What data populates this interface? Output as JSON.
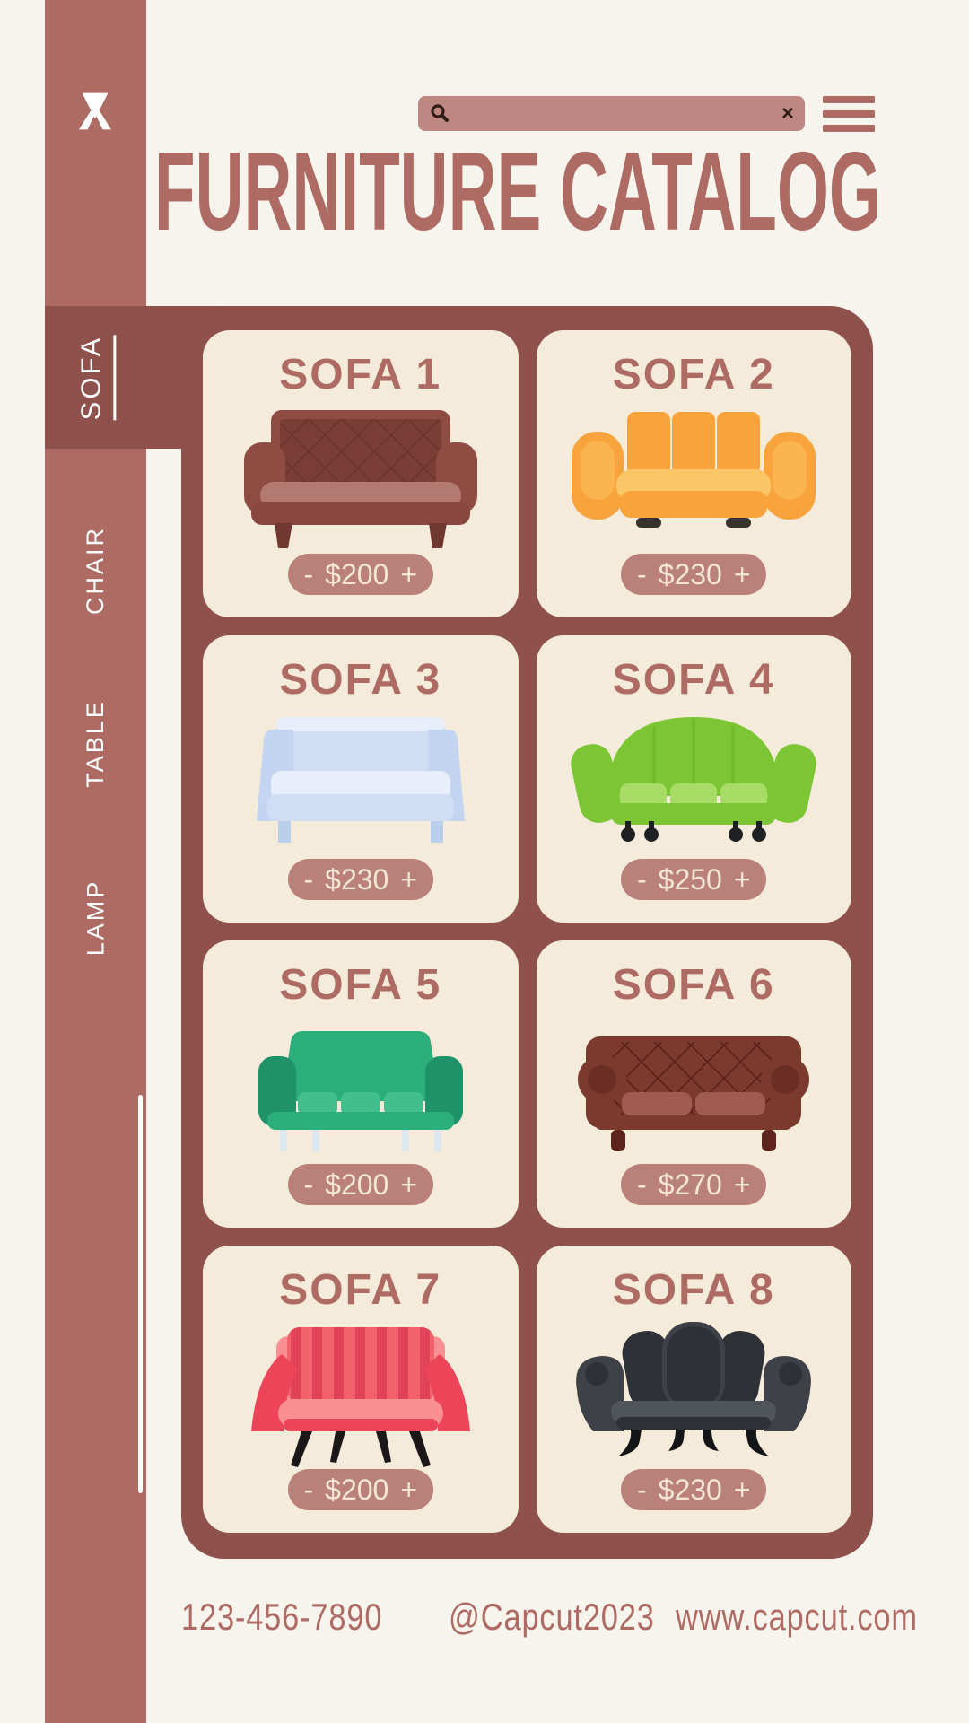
{
  "app": {
    "title": "FURNITURE CATALOG"
  },
  "theme": {
    "bg": "#F7F4EE",
    "card": "#F5EBDA",
    "mauve": "#AE6B64",
    "maroon": "#8F514B",
    "pill": "#B9817A",
    "search": "#BE8781",
    "textcream": "#F3E6D5",
    "dark": "#301D18"
  },
  "sidebar": {
    "logo": "capcut-logo",
    "items": [
      {
        "label": "SOFA",
        "active": true
      },
      {
        "label": "CHAIR",
        "active": false
      },
      {
        "label": "TABLE",
        "active": false
      },
      {
        "label": "LAMP",
        "active": false
      }
    ]
  },
  "search": {
    "value": "",
    "clear_glyph": "×"
  },
  "stepper": {
    "minus": "-",
    "plus": "+"
  },
  "products": [
    {
      "name": "SOFA 1",
      "price": "$200",
      "style": "chesterfield",
      "colors": {
        "main": "#8F4C43",
        "dark": "#7A3E36",
        "line": "#69332B",
        "light": "#B37A71",
        "base": "#8A4740",
        "leg": "#703830"
      }
    },
    {
      "name": "SOFA 2",
      "price": "$230",
      "style": "modern",
      "colors": {
        "main": "#F9A33C",
        "light": "#FBC766",
        "dark": "#EE8D2B",
        "leg": "#37332C"
      }
    },
    {
      "name": "SOFA 3",
      "price": "$230",
      "style": "boxy",
      "colors": {
        "main": "#C3D5F0",
        "mid": "#CFDEF5",
        "light": "#E8EFFA",
        "leg": "#BACFEC"
      }
    },
    {
      "name": "SOFA 4",
      "price": "$250",
      "style": "dome",
      "colors": {
        "main": "#7CC636",
        "light": "#A9DC66",
        "dark": "#63AE25",
        "leg": "#1F2022"
      }
    },
    {
      "name": "SOFA 5",
      "price": "$200",
      "style": "trapez",
      "colors": {
        "main": "#2BAD7C",
        "light": "#43BF8F",
        "dark": "#20926A",
        "leg": "#DCE8F0"
      }
    },
    {
      "name": "SOFA 6",
      "price": "$270",
      "style": "chester2",
      "colors": {
        "main": "#7C3A2F",
        "dark": "#6A2E25",
        "line": "#571F18",
        "light": "#A05B51",
        "arm": "#6A2E25",
        "leg": "#5E241C"
      }
    },
    {
      "name": "SOFA 7",
      "price": "$200",
      "style": "flare",
      "colors": {
        "main": "#EC4459",
        "light": "#F78F93",
        "stripe": "#E04257",
        "stripe2": "#F2626D",
        "leg": "#1C1718"
      }
    },
    {
      "name": "SOFA 8",
      "price": "$230",
      "style": "wing",
      "colors": {
        "main": "#2E3136",
        "mid": "#3E4248",
        "light": "#50545B",
        "leg": "#141517"
      }
    }
  ],
  "footer": {
    "phone": "123-456-7890",
    "handle": "@Capcut2023",
    "website": "www.capcut.com"
  }
}
